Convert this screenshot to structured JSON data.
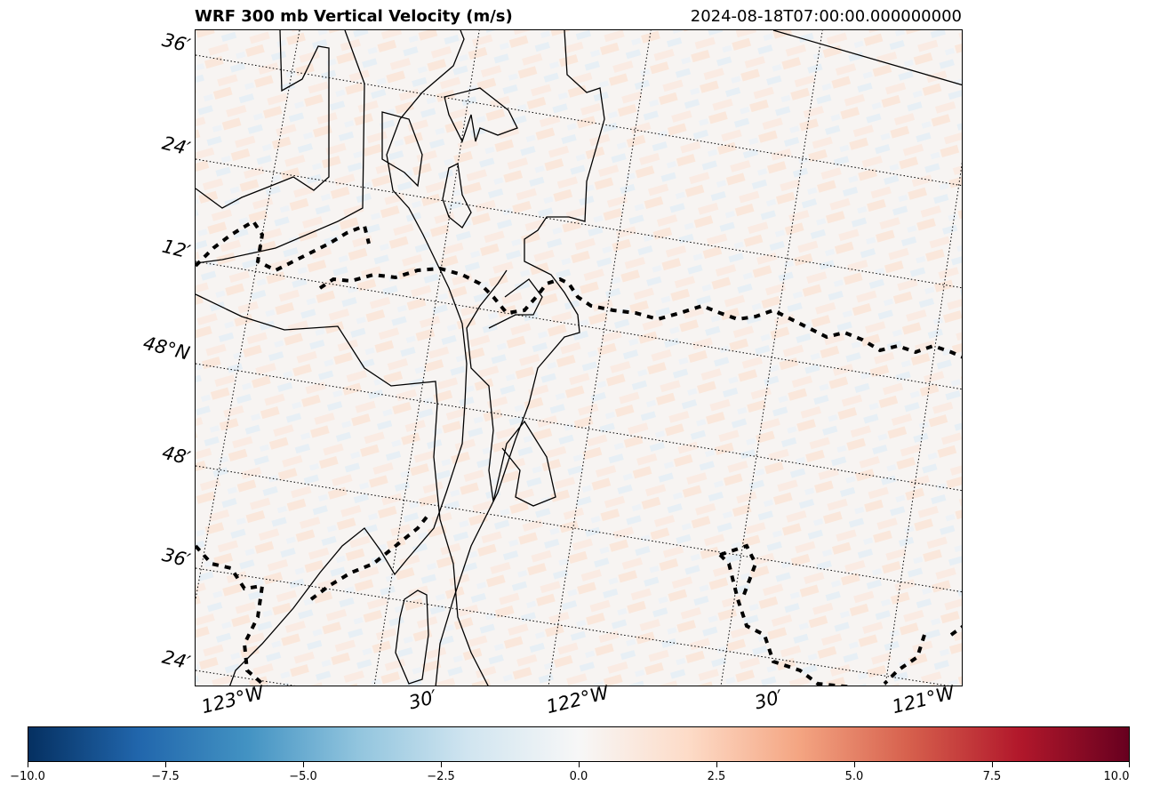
{
  "header": {
    "title": "WRF 300 mb Vertical Velocity (m/s)",
    "valid_time": "2024-08-18T07:00:00.000000000"
  },
  "map": {
    "variable": "Vertical Velocity",
    "units": "m/s",
    "level": "300 mb",
    "lat_labels": [
      "36′",
      "24′",
      "12′",
      "48°N",
      "48′",
      "36′",
      "24′"
    ],
    "lon_labels": [
      "123°W",
      "30′",
      "122°W",
      "30′",
      "121°W"
    ],
    "gridlines": true,
    "gridline_style": "dotted",
    "colormap": "RdBu_r"
  },
  "colorbar": {
    "min": -10.0,
    "max": 10.0,
    "ticks": [
      "−10.0",
      "−7.5",
      "−5.0",
      "−2.5",
      "0.0",
      "2.5",
      "5.0",
      "7.5",
      "10.0"
    ],
    "colors": [
      "#053061",
      "#2166ac",
      "#4393c3",
      "#92c5de",
      "#d1e5f0",
      "#f7f7f7",
      "#fddbc7",
      "#f4a582",
      "#d6604d",
      "#b2182b",
      "#67001f"
    ]
  }
}
